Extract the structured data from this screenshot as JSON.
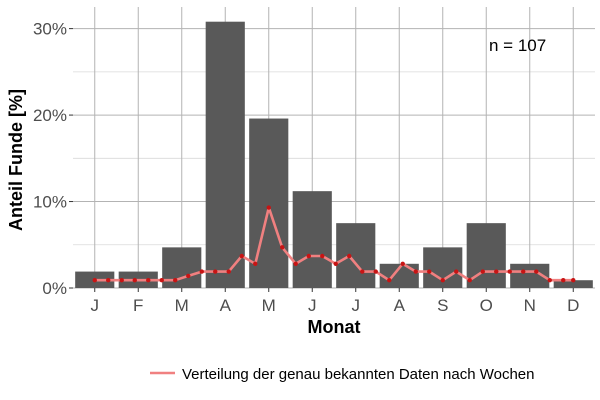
{
  "chart_data": {
    "type": "bar",
    "categories": [
      "J",
      "F",
      "M",
      "A",
      "M",
      "J",
      "J",
      "A",
      "S",
      "O",
      "N",
      "D"
    ],
    "values": [
      1.9,
      1.9,
      4.7,
      30.8,
      19.6,
      11.2,
      7.5,
      2.8,
      4.7,
      7.5,
      2.8,
      0.9
    ],
    "ylabel": "Anteil Funde [%]",
    "xlabel": "Monat",
    "y_ticks": [
      "0%",
      "10%",
      "20%",
      "30%"
    ],
    "y_tick_values": [
      0,
      10,
      20,
      30
    ],
    "ylim": [
      0,
      32.5
    ],
    "annotation": "n = 107",
    "bar_color": "#595959",
    "grid": true,
    "series": [
      {
        "name": "Verteilung der genau bekannten Daten nach Wochen",
        "color": "#f08080",
        "point_color": "#c81414",
        "x": [
          0.0,
          0.31,
          0.62,
          0.92,
          1.23,
          1.54,
          1.85,
          2.15,
          2.46,
          2.77,
          3.08,
          3.38,
          3.69,
          4.0,
          4.31,
          4.62,
          4.92,
          5.23,
          5.54,
          5.85,
          6.15,
          6.46,
          6.77,
          7.08,
          7.38,
          7.69,
          8.0,
          8.31,
          8.62,
          8.92,
          9.23,
          9.54,
          9.85,
          10.15,
          10.46,
          10.77,
          11.0
        ],
        "values": [
          0.9,
          0.9,
          0.9,
          0.9,
          0.9,
          0.9,
          0.9,
          1.4,
          1.9,
          1.9,
          1.9,
          3.7,
          2.8,
          9.3,
          4.7,
          2.8,
          3.7,
          3.7,
          2.8,
          3.7,
          1.9,
          1.9,
          0.9,
          2.8,
          1.9,
          1.9,
          0.9,
          1.9,
          0.9,
          1.9,
          1.9,
          1.9,
          1.9,
          1.9,
          0.9,
          0.9,
          0.9
        ]
      }
    ],
    "legend_position": "bottom"
  }
}
